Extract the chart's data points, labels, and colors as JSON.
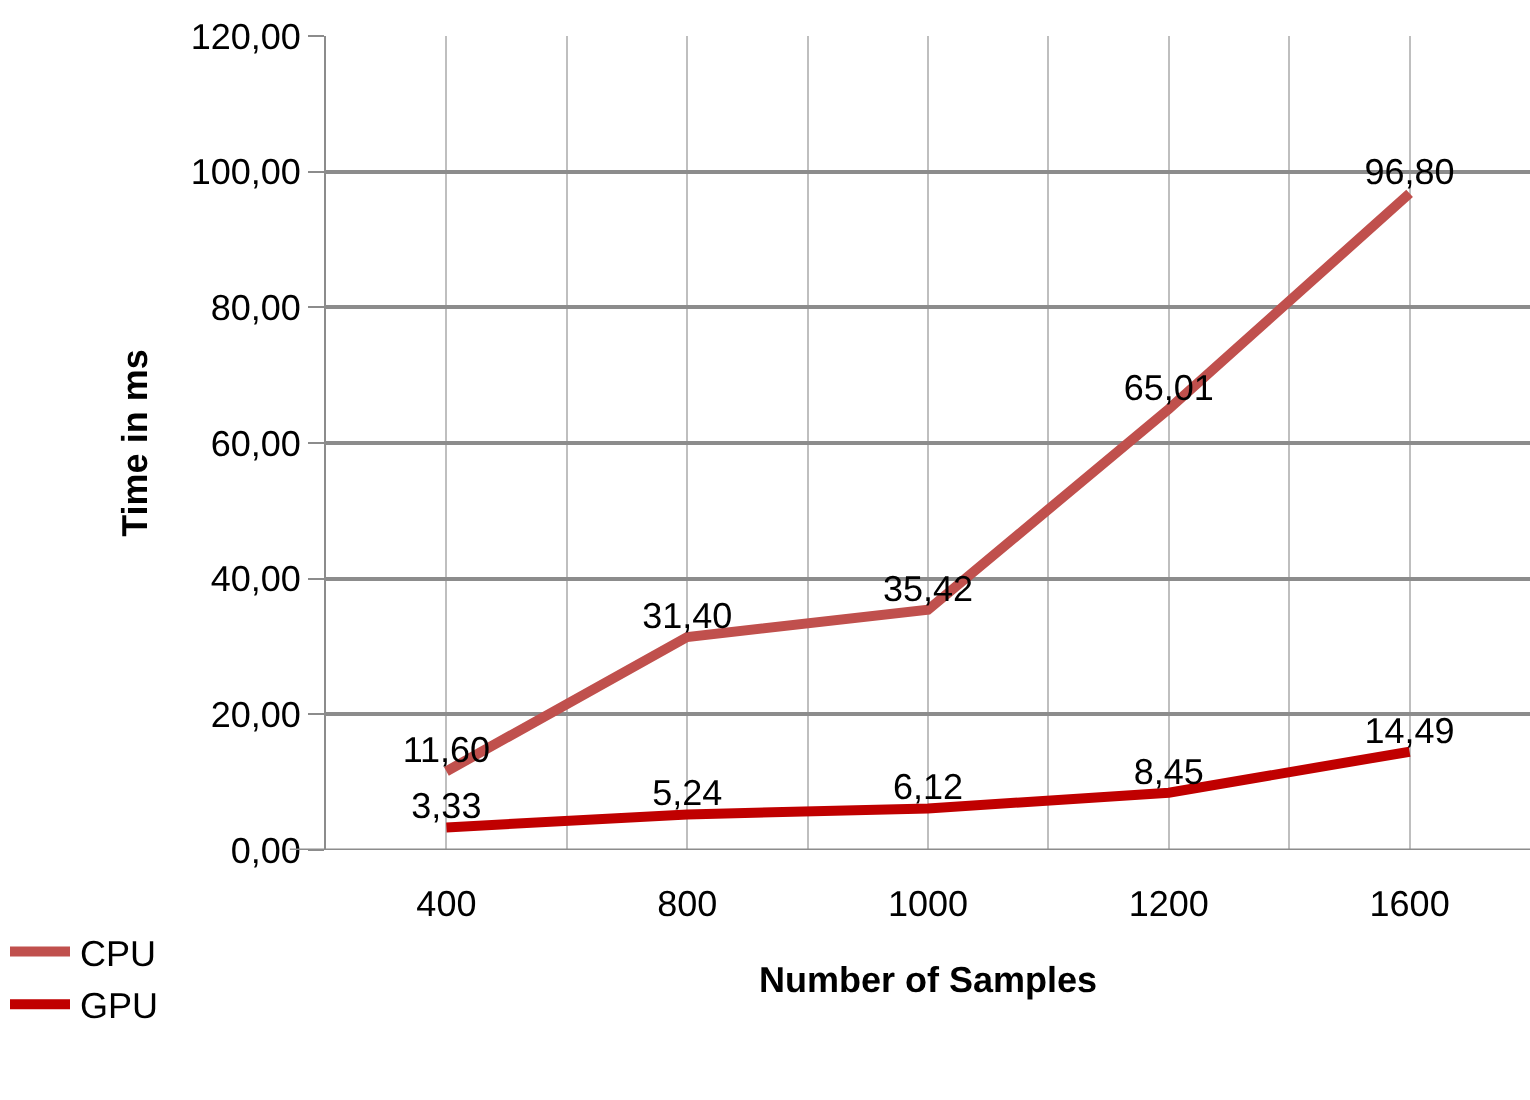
{
  "chart_data": {
    "type": "line",
    "xlabel": "Number of Samples",
    "ylabel": "Time in ms",
    "categories": [
      "400",
      "800",
      "1000",
      "1200",
      "1600"
    ],
    "series": [
      {
        "name": "CPU",
        "color": "#c0504d",
        "values": [
          11.6,
          31.4,
          35.42,
          65.01,
          96.8
        ]
      },
      {
        "name": "GPU",
        "color": "#c00000",
        "values": [
          3.33,
          5.24,
          6.12,
          8.45,
          14.49
        ]
      }
    ],
    "value_labels": [
      [
        "11,60",
        "31,40",
        "35,42",
        "65,01",
        "96,80"
      ],
      [
        "3,33",
        "5,24",
        "6,12",
        "8,45",
        "14,49"
      ]
    ],
    "ylim": [
      0,
      120
    ],
    "yticks": [
      {
        "value": 0,
        "label": "0,00"
      },
      {
        "value": 20,
        "label": "20,00"
      },
      {
        "value": 40,
        "label": "40,00"
      },
      {
        "value": 60,
        "label": "60,00"
      },
      {
        "value": 80,
        "label": "80,00"
      },
      {
        "value": 100,
        "label": "100,00"
      },
      {
        "value": 120,
        "label": "120,00"
      }
    ],
    "grid": true,
    "legend": "bottom left",
    "marker": "none",
    "line_style": "solid"
  }
}
